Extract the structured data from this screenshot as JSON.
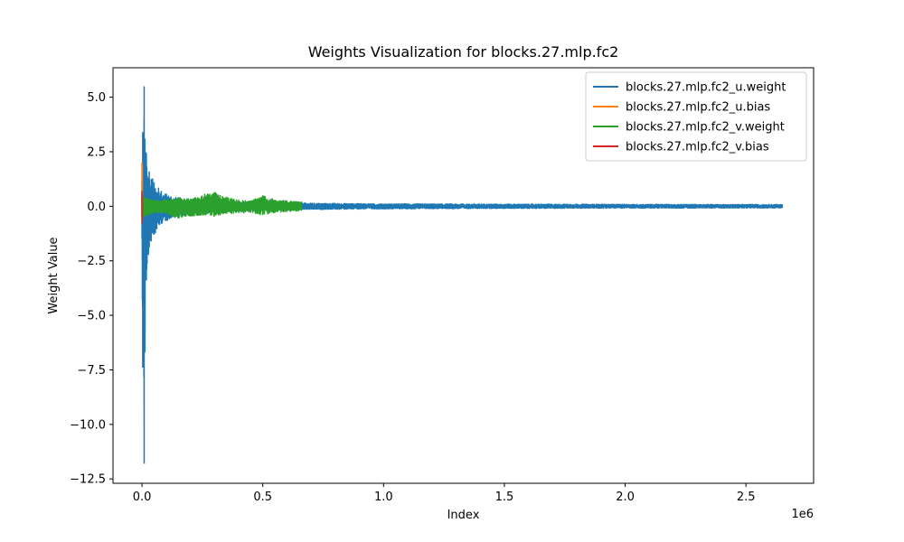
{
  "chart_data": {
    "type": "line",
    "title": "Weights Visualization for blocks.27.mlp.fc2",
    "xlabel": "Index",
    "ylabel": "Weight Value",
    "x_offset_text": "1e6",
    "xlim": [
      -120000,
      2780000
    ],
    "ylim": [
      -12.7,
      6.35
    ],
    "x_ticks": [
      0,
      500000,
      1000000,
      1500000,
      2000000,
      2500000
    ],
    "x_tick_labels": [
      "0.0",
      "0.5",
      "1.0",
      "1.5",
      "2.0",
      "2.5"
    ],
    "y_ticks": [
      5,
      2.5,
      0,
      -2.5,
      -5,
      -7.5,
      -10,
      -12.5
    ],
    "y_tick_labels": [
      "5.0",
      "2.5",
      "0.0",
      "−2.5",
      "−5.0",
      "−7.5",
      "−10.0",
      "−12.5"
    ],
    "grid": false,
    "legend_position": "upper right",
    "series": [
      {
        "name": "blocks.27.mlp.fc2_u.weight",
        "color": "#1f77b4",
        "x_range": [
          0,
          2650000
        ],
        "envelope": [
          {
            "x": 0,
            "max": 1.2,
            "min": -1.5
          },
          {
            "x": 3000,
            "max": 3.4,
            "min": -7.4
          },
          {
            "x": 6000,
            "max": 2.6,
            "min": -4.6
          },
          {
            "x": 9000,
            "max": 5.5,
            "min": -11.8
          },
          {
            "x": 12000,
            "max": 3.1,
            "min": -6.7
          },
          {
            "x": 18000,
            "max": 2.4,
            "min": -3.4
          },
          {
            "x": 30000,
            "max": 1.6,
            "min": -1.9
          },
          {
            "x": 50000,
            "max": 1.1,
            "min": -1.3
          },
          {
            "x": 80000,
            "max": 0.7,
            "min": -0.8
          },
          {
            "x": 120000,
            "max": 0.45,
            "min": -0.55
          },
          {
            "x": 200000,
            "max": 0.3,
            "min": -0.35
          },
          {
            "x": 350000,
            "max": 0.22,
            "min": -0.25
          },
          {
            "x": 500000,
            "max": 0.18,
            "min": -0.2
          },
          {
            "x": 700000,
            "max": 0.14,
            "min": -0.15
          },
          {
            "x": 1000000,
            "max": 0.11,
            "min": -0.12
          },
          {
            "x": 1500000,
            "max": 0.1,
            "min": -0.1
          },
          {
            "x": 2000000,
            "max": 0.09,
            "min": -0.09
          },
          {
            "x": 2650000,
            "max": 0.08,
            "min": -0.08
          }
        ]
      },
      {
        "name": "blocks.27.mlp.fc2_u.bias",
        "color": "#ff7f0e",
        "x_range": [
          0,
          1536
        ],
        "envelope": [
          {
            "x": 0,
            "max": 2.0,
            "min": -0.3
          },
          {
            "x": 1536,
            "max": 1.9,
            "min": -0.5
          }
        ]
      },
      {
        "name": "blocks.27.mlp.fc2_v.weight",
        "color": "#2ca02c",
        "x_range": [
          0,
          660000
        ],
        "envelope": [
          {
            "x": 0,
            "max": 0.5,
            "min": -0.5
          },
          {
            "x": 20000,
            "max": 0.35,
            "min": -0.4
          },
          {
            "x": 60000,
            "max": 0.25,
            "min": -0.3
          },
          {
            "x": 100000,
            "max": 0.3,
            "min": -0.35
          },
          {
            "x": 150000,
            "max": 0.4,
            "min": -0.55
          },
          {
            "x": 200000,
            "max": 0.35,
            "min": -0.45
          },
          {
            "x": 260000,
            "max": 0.55,
            "min": -0.4
          },
          {
            "x": 300000,
            "max": 0.65,
            "min": -0.45
          },
          {
            "x": 350000,
            "max": 0.4,
            "min": -0.35
          },
          {
            "x": 400000,
            "max": 0.3,
            "min": -0.3
          },
          {
            "x": 450000,
            "max": 0.25,
            "min": -0.3
          },
          {
            "x": 500000,
            "max": 0.5,
            "min": -0.4
          },
          {
            "x": 550000,
            "max": 0.3,
            "min": -0.3
          },
          {
            "x": 600000,
            "max": 0.25,
            "min": -0.25
          },
          {
            "x": 660000,
            "max": 0.2,
            "min": -0.2
          }
        ]
      },
      {
        "name": "blocks.27.mlp.fc2_v.bias",
        "color": "#d62728",
        "x_range": [
          0,
          1536
        ],
        "envelope": [
          {
            "x": 0,
            "max": 0.7,
            "min": -0.8
          },
          {
            "x": 1536,
            "max": 0.5,
            "min": -0.6
          }
        ]
      }
    ]
  }
}
